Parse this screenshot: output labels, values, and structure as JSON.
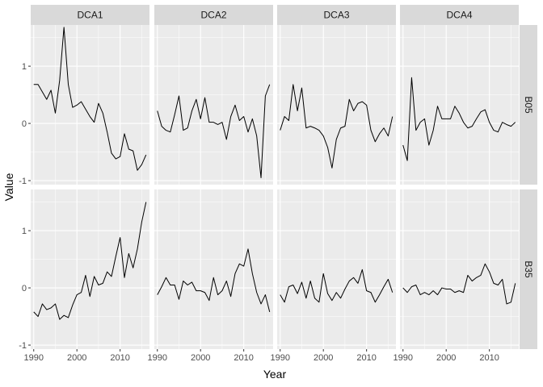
{
  "chart_data": {
    "type": "line",
    "xlabel": "Year",
    "ylabel": "Value",
    "xlim": [
      1989.3,
      2016.8
    ],
    "ylim": [
      -1.07,
      1.72
    ],
    "xticks": [
      1990,
      2000,
      2010
    ],
    "yticks": [
      -1,
      0,
      1
    ],
    "grid": true,
    "columns": [
      "DCA1",
      "DCA2",
      "DCA3",
      "DCA4"
    ],
    "rows": [
      "B05",
      "B35"
    ],
    "x": [
      1990,
      1991,
      1992,
      1993,
      1994,
      1995,
      1996,
      1997,
      1998,
      1999,
      2000,
      2001,
      2002,
      2003,
      2004,
      2005,
      2006,
      2007,
      2008,
      2009,
      2010,
      2011,
      2012,
      2013,
      2014,
      2015,
      2016
    ],
    "panels": [
      {
        "row": "B05",
        "col": "DCA1",
        "values": [
          0.68,
          0.68,
          0.55,
          0.42,
          0.58,
          0.18,
          0.75,
          1.68,
          0.68,
          0.28,
          0.32,
          0.38,
          0.25,
          0.12,
          0.02,
          0.35,
          0.18,
          -0.15,
          -0.52,
          -0.62,
          -0.58,
          -0.18,
          -0.45,
          -0.48,
          -0.82,
          -0.72,
          -0.55
        ]
      },
      {
        "row": "B05",
        "col": "DCA2",
        "values": [
          0.22,
          -0.05,
          -0.12,
          -0.15,
          0.15,
          0.48,
          -0.12,
          -0.08,
          0.22,
          0.42,
          0.08,
          0.45,
          0.02,
          0.02,
          -0.02,
          0.02,
          -0.28,
          0.12,
          0.32,
          0.05,
          0.12,
          -0.15,
          0.08,
          -0.22,
          -0.95,
          0.48,
          0.68
        ]
      },
      {
        "row": "B05",
        "col": "DCA3",
        "values": [
          -0.12,
          0.12,
          0.05,
          0.68,
          0.22,
          0.62,
          -0.08,
          -0.05,
          -0.08,
          -0.12,
          -0.22,
          -0.42,
          -0.78,
          -0.28,
          -0.08,
          -0.05,
          0.42,
          0.22,
          0.35,
          0.38,
          0.32,
          -0.12,
          -0.32,
          -0.18,
          -0.08,
          -0.22,
          0.12
        ]
      },
      {
        "row": "B05",
        "col": "DCA4",
        "values": [
          -0.38,
          -0.65,
          0.8,
          -0.12,
          0.02,
          0.08,
          -0.38,
          -0.12,
          0.3,
          0.08,
          0.08,
          0.08,
          0.3,
          0.18,
          0.02,
          -0.08,
          -0.05,
          0.08,
          0.2,
          0.24,
          0.02,
          -0.12,
          -0.15,
          0.02,
          -0.02,
          -0.05,
          0.02
        ]
      },
      {
        "row": "B35",
        "col": "DCA1",
        "values": [
          -0.42,
          -0.5,
          -0.28,
          -0.38,
          -0.35,
          -0.28,
          -0.55,
          -0.48,
          -0.52,
          -0.3,
          -0.12,
          -0.08,
          0.22,
          -0.15,
          0.2,
          0.05,
          0.08,
          0.28,
          0.2,
          0.55,
          0.88,
          0.18,
          0.6,
          0.35,
          0.68,
          1.15,
          1.5
        ]
      },
      {
        "row": "B35",
        "col": "DCA2",
        "values": [
          -0.12,
          0.02,
          0.18,
          0.05,
          0.05,
          -0.2,
          0.12,
          0.05,
          0.1,
          -0.05,
          -0.05,
          -0.08,
          -0.22,
          0.18,
          -0.12,
          -0.05,
          0.12,
          -0.15,
          0.25,
          0.42,
          0.38,
          0.68,
          0.25,
          -0.08,
          -0.28,
          -0.12,
          -0.42
        ]
      },
      {
        "row": "B35",
        "col": "DCA3",
        "values": [
          -0.12,
          -0.25,
          0.02,
          0.05,
          -0.1,
          0.1,
          -0.18,
          0.12,
          -0.18,
          -0.25,
          0.25,
          -0.1,
          -0.22,
          -0.08,
          -0.18,
          -0.02,
          0.12,
          0.18,
          0.08,
          0.32,
          -0.05,
          -0.08,
          -0.25,
          -0.12,
          0.02,
          0.15,
          -0.08
        ]
      },
      {
        "row": "B35",
        "col": "DCA4",
        "values": [
          0.0,
          -0.08,
          0.02,
          0.05,
          -0.12,
          -0.08,
          -0.12,
          -0.05,
          -0.12,
          0.0,
          -0.02,
          -0.02,
          -0.08,
          -0.05,
          -0.08,
          0.22,
          0.12,
          0.18,
          0.22,
          0.42,
          0.28,
          0.08,
          0.05,
          0.15,
          -0.28,
          -0.25,
          0.08
        ]
      }
    ]
  },
  "colors": {
    "panel_bg": "#ebebeb",
    "strip_bg": "#d9d9d9",
    "grid_major": "#ffffff",
    "line": "#000000"
  }
}
